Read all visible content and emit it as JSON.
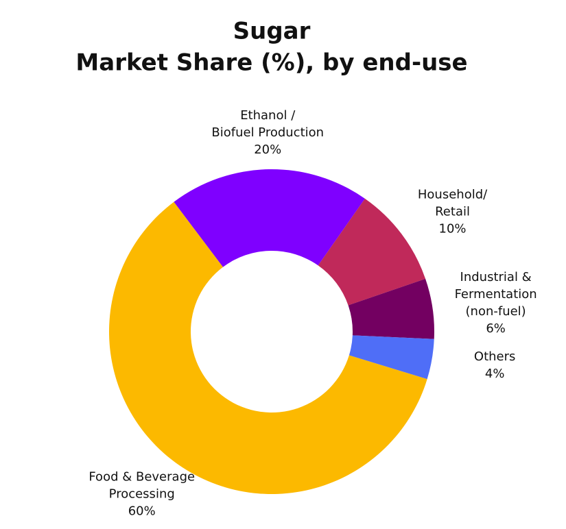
{
  "chart_data": {
    "type": "donut",
    "title": [
      "Sugar",
      "Market Share (%), by end-use"
    ],
    "categories": [
      [
        "Ethanol /",
        "Biofuel Production"
      ],
      [
        "Household/",
        "Retail"
      ],
      [
        "Industrial &",
        "Fermentation",
        "(non-fuel)"
      ],
      [
        "Others"
      ],
      [
        "Food & Beverage",
        "Processing"
      ]
    ],
    "values": [
      20,
      10,
      6,
      4,
      60
    ],
    "value_labels": [
      "20%",
      "10%",
      "6%",
      "4%",
      "60%"
    ],
    "colors": [
      "#7f00ff",
      "#c0295a",
      "#730061",
      "#4f6ef7",
      "#fcb900"
    ]
  }
}
